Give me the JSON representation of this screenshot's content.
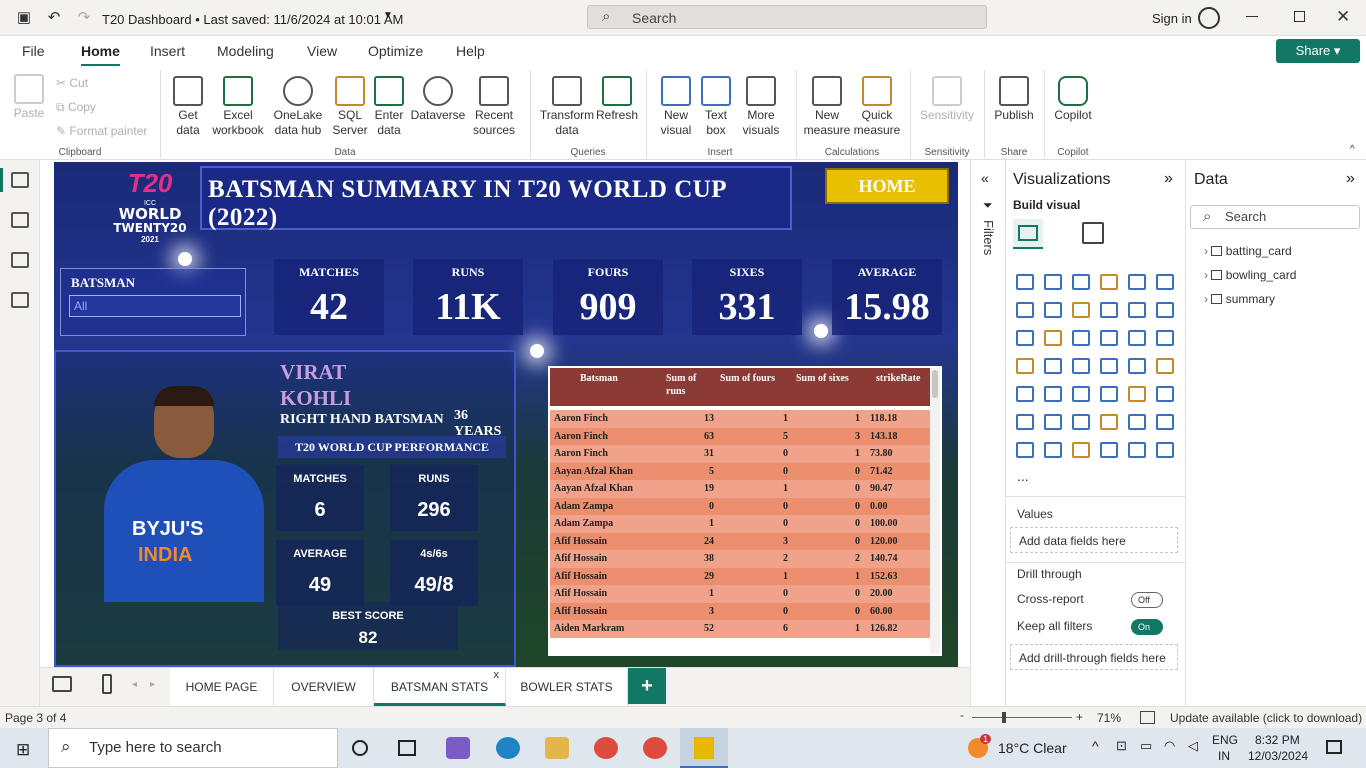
{
  "window": {
    "title": "T20 Dashboard • Last saved: 11/6/2024 at 10:01 AM",
    "search_placeholder": "Search",
    "signin": "Sign in"
  },
  "ribbon_tabs": [
    "File",
    "Home",
    "Insert",
    "Modeling",
    "View",
    "Optimize",
    "Help"
  ],
  "share_label": "Share",
  "ribbon": {
    "clipboard": {
      "paste": "Paste",
      "cut": "Cut",
      "copy": "Copy",
      "format_painter": "Format painter",
      "group": "Clipboard"
    },
    "data": {
      "get_data": "Get data",
      "excel": "Excel workbook",
      "onelake": "OneLake data hub",
      "sql": "SQL Server",
      "enter": "Enter data",
      "dataverse": "Dataverse",
      "recent": "Recent sources",
      "group": "Data"
    },
    "queries": {
      "transform": "Transform data",
      "refresh": "Refresh",
      "group": "Queries"
    },
    "insert": {
      "new_visual": "New visual",
      "text_box": "Text box",
      "more_visuals": "More visuals",
      "group": "Insert"
    },
    "calc": {
      "new_measure": "New measure",
      "quick_measure": "Quick measure",
      "group": "Calculations"
    },
    "sensitivity": {
      "label": "Sensitivity",
      "group": "Sensitivity"
    },
    "share": {
      "publish": "Publish",
      "group": "Share"
    },
    "copilot": {
      "label": "Copilot",
      "group": "Copilot"
    }
  },
  "dashboard": {
    "logo_lines": [
      "ICC",
      "WORLD",
      "TWENTY20",
      "2021"
    ],
    "title": "BATSMAN SUMMARY IN T20 WORLD CUP (2022)",
    "home_button": "HOME",
    "slicer": {
      "label": "BATSMAN",
      "value": "All"
    },
    "kpis": [
      {
        "label": "MATCHES",
        "value": "42"
      },
      {
        "label": "RUNS",
        "value": "11K"
      },
      {
        "label": "FOURS",
        "value": "909"
      },
      {
        "label": "SIXES",
        "value": "331"
      },
      {
        "label": "AVERAGE",
        "value": "15.98"
      }
    ],
    "player": {
      "first_name": "VIRAT",
      "last_name": "KOHLI",
      "style": "RIGHT HAND BATSMAN",
      "age": "36 YEARS",
      "perf_header": "T20 WORLD CUP PERFORMANCE",
      "stats": [
        {
          "label": "MATCHES",
          "value": "6"
        },
        {
          "label": "RUNS",
          "value": "296"
        },
        {
          "label": "AVERAGE",
          "value": "49"
        },
        {
          "label": "4s/6s",
          "value": "49/8"
        }
      ],
      "best_label": "BEST SCORE",
      "best_value": "82",
      "jersey_sponsor": "BYJU'S",
      "jersey_country": "INDIA"
    },
    "table": {
      "headers": [
        "Batsman",
        "Sum of runs",
        "Sum of fours",
        "Sum of sixes",
        "strikeRate"
      ],
      "rows": [
        [
          "Aaron Finch",
          "13",
          "1",
          "1",
          "118.18"
        ],
        [
          "Aaron Finch",
          "63",
          "5",
          "3",
          "143.18"
        ],
        [
          "Aaron Finch",
          "31",
          "0",
          "1",
          "73.80"
        ],
        [
          "Aayan Afzal Khan",
          "5",
          "0",
          "0",
          "71.42"
        ],
        [
          "Aayan Afzal Khan",
          "19",
          "1",
          "0",
          "90.47"
        ],
        [
          "Adam Zampa",
          "0",
          "0",
          "0",
          "0.00"
        ],
        [
          "Adam Zampa",
          "1",
          "0",
          "0",
          "100.00"
        ],
        [
          "Afif Hossain",
          "24",
          "3",
          "0",
          "120.00"
        ],
        [
          "Afif Hossain",
          "38",
          "2",
          "2",
          "140.74"
        ],
        [
          "Afif Hossain",
          "29",
          "1",
          "1",
          "152.63"
        ],
        [
          "Afif Hossain",
          "1",
          "0",
          "0",
          "20.00"
        ],
        [
          "Afif Hossain",
          "3",
          "0",
          "0",
          "60.00"
        ],
        [
          "Aiden Markram",
          "52",
          "6",
          "1",
          "126.82"
        ]
      ]
    }
  },
  "filters_label": "Filters",
  "visualizations": {
    "title": "Visualizations",
    "build": "Build visual",
    "more": "...",
    "values_label": "Values",
    "values_well": "Add data fields here",
    "drill_label": "Drill through",
    "cross_report": "Cross-report",
    "cross_report_state": "Off",
    "keep_filters": "Keep all filters",
    "keep_filters_state": "On",
    "drill_well": "Add drill-through fields here"
  },
  "data_pane": {
    "title": "Data",
    "search_placeholder": "Search",
    "tables": [
      "batting_card",
      "bowling_card",
      "summary"
    ]
  },
  "page_tabs": [
    "HOME PAGE",
    "OVERVIEW",
    "BATSMAN STATS",
    "BOWLER STATS"
  ],
  "active_tab": "BATSMAN STATS",
  "status": {
    "page": "Page 3 of 4",
    "zoom": "71%",
    "update": "Update available (click to download)"
  },
  "taskbar": {
    "search": "Type here to search",
    "weather": "18°C  Clear",
    "lang1": "ENG",
    "lang2": "IN",
    "time": "8:32 PM",
    "date": "12/03/2024",
    "notif": "1"
  }
}
